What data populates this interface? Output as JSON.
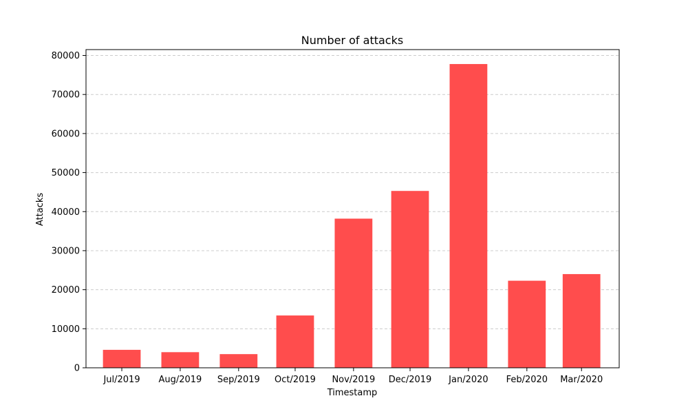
{
  "chart_data": {
    "type": "bar",
    "title": "Number of attacks",
    "xlabel": "Timestamp",
    "ylabel": "Attacks",
    "categories": [
      "Jul/2019",
      "Aug/2019",
      "Sep/2019",
      "Oct/2019",
      "Nov/2019",
      "Dec/2019",
      "Jan/2020",
      "Feb/2020",
      "Mar/2020"
    ],
    "x_dates": [
      "2019-07-15",
      "2019-08-15",
      "2019-09-15",
      "2019-10-15",
      "2019-11-15",
      "2019-12-15",
      "2020-01-15",
      "2020-02-15",
      "2020-03-15"
    ],
    "values": [
      4600,
      4000,
      3500,
      13400,
      38200,
      45300,
      77800,
      22300,
      24000
    ],
    "ylim": [
      0,
      81500
    ],
    "yticks": [
      0,
      10000,
      20000,
      30000,
      40000,
      50000,
      60000,
      70000,
      80000
    ],
    "bar_color": "#ff4d4d",
    "grid": "y-dashed",
    "legend": "none"
  }
}
